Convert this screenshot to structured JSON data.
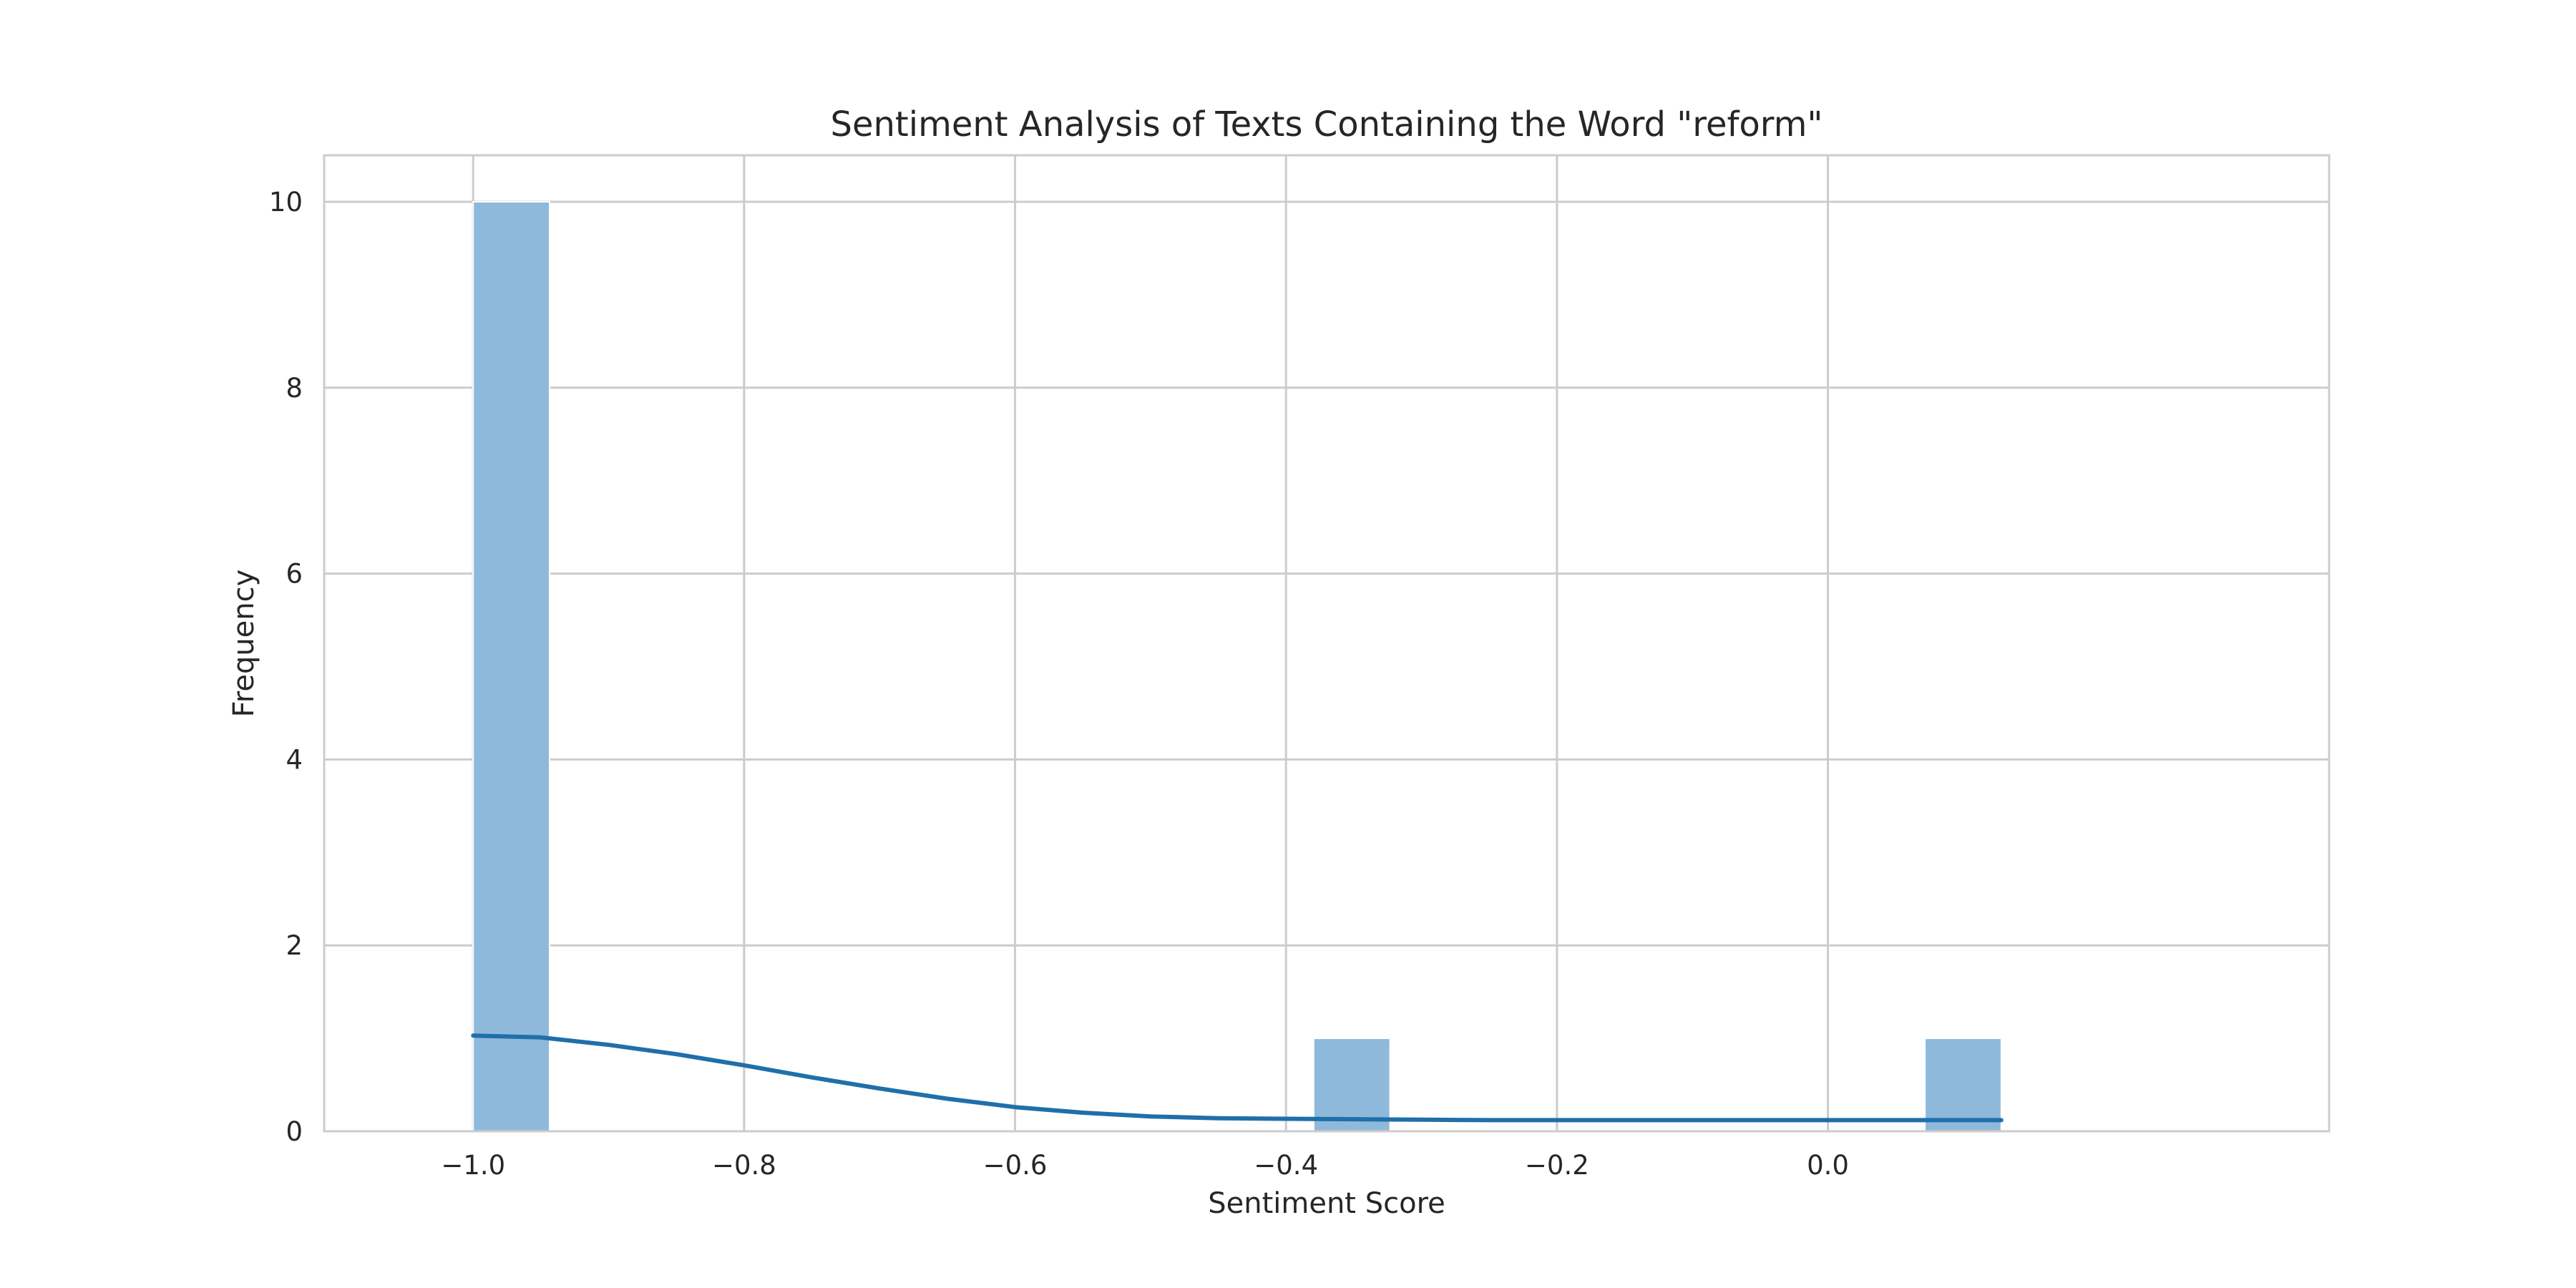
{
  "chart_data": {
    "type": "bar",
    "subtype": "histogram_with_kde",
    "title": "Sentiment Analysis of Texts Containing the Word \"reform\"",
    "xlabel": "Sentiment Score",
    "ylabel": "Frequency",
    "xlim": [
      -1.11,
      0.37
    ],
    "ylim": [
      0,
      10.5
    ],
    "x_ticks": [
      -1.0,
      -0.8,
      -0.6,
      -0.4,
      -0.2,
      0.0
    ],
    "x_tick_labels": [
      "−1.0",
      "−0.8",
      "−0.6",
      "−0.4",
      "−0.2",
      "0.0"
    ],
    "y_ticks": [
      0,
      2,
      4,
      6,
      8,
      10
    ],
    "y_tick_labels": [
      "0",
      "2",
      "4",
      "6",
      "8",
      "10"
    ],
    "grid": true,
    "bar_color": "#8fb9da",
    "kde_color": "#1f6faa",
    "bins": [
      {
        "x0": -1.0,
        "x1": -0.9436,
        "count": 10
      },
      {
        "x0": -0.3796,
        "x1": -0.3232,
        "count": 1
      },
      {
        "x0": 0.0716,
        "x1": 0.128,
        "count": 1
      }
    ],
    "kde": {
      "x": [
        -1.0,
        -0.95,
        -0.9,
        -0.85,
        -0.8,
        -0.75,
        -0.7,
        -0.65,
        -0.6,
        -0.55,
        -0.5,
        -0.45,
        -0.4,
        -0.35,
        -0.3,
        -0.25,
        -0.2,
        -0.15,
        -0.1,
        -0.05,
        0.0,
        0.05,
        0.1,
        0.128
      ],
      "y": [
        1.03,
        1.01,
        0.93,
        0.83,
        0.71,
        0.58,
        0.46,
        0.35,
        0.26,
        0.2,
        0.16,
        0.14,
        0.135,
        0.13,
        0.125,
        0.12,
        0.12,
        0.12,
        0.12,
        0.12,
        0.12,
        0.12,
        0.12,
        0.12
      ]
    }
  }
}
